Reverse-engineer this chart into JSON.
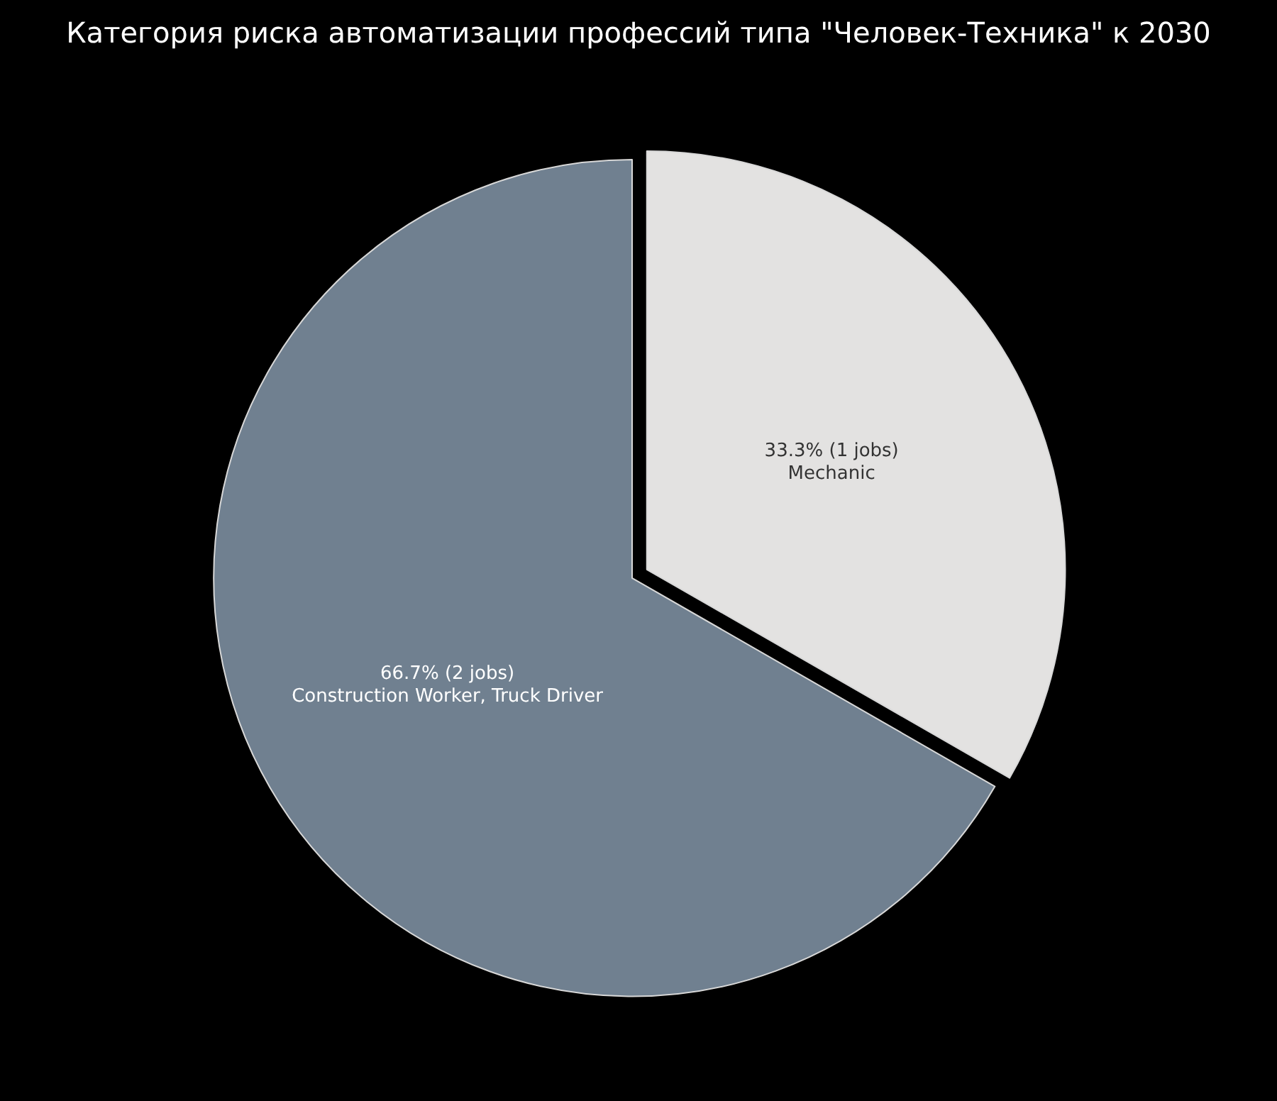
{
  "chart_data": {
    "type": "pie",
    "title": "Категория риска автоматизации профессий типа \"Человек-Техника\" к 2030",
    "categories": [
      "Mechanic",
      "Construction Worker, Truck Driver"
    ],
    "values": [
      33.3,
      66.7
    ],
    "value_labels": [
      "33.3% (1 jobs)",
      "66.7% (2 jobs)"
    ],
    "colors": [
      "#e3e2e1",
      "#708090"
    ],
    "legend": false
  }
}
